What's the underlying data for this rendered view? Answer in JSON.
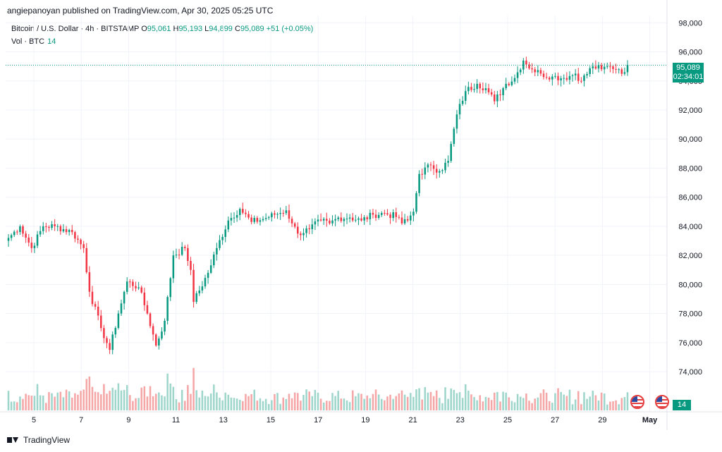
{
  "header": {
    "credit": "angiepanoyan published on TradingView.com, Apr 30, 2025 05:25 UTC"
  },
  "legend": {
    "symbol": "Bitcoin / U.S. Dollar · 4h · BITSTAMP",
    "open_label": "O",
    "open": "95,061",
    "high_label": "H",
    "high": "95,193",
    "low_label": "L",
    "low": "94,899",
    "close_label": "C",
    "close": "95,089",
    "change": "+51 (+0.05%)",
    "volume_label": "Vol · BTC",
    "volume": "14"
  },
  "price_badge": {
    "price": "95,089",
    "countdown": "02:34:01"
  },
  "volume_badge": {
    "value": "14"
  },
  "footer": {
    "brand": "TradingView"
  },
  "colors": {
    "up": "#089981",
    "down": "#f23645",
    "up_volume": "#9fd6cc",
    "down_volume": "#f5a6a6",
    "grid": "#f0f3fa",
    "axis_text": "#131722"
  },
  "icons": [
    "tradingview-logo-icon",
    "us-flag-event-icon",
    "us-flag-event-icon"
  ],
  "chart_data": {
    "type": "candlestick",
    "timeframe": "4h",
    "ylim": [
      72500,
      98500
    ],
    "y_ticks": [
      "74,000",
      "76,000",
      "78,000",
      "80,000",
      "82,000",
      "84,000",
      "86,000",
      "88,000",
      "90,000",
      "92,000",
      "94,000",
      "96,000",
      "98,000"
    ],
    "x_ticks": [
      "5",
      "7",
      "9",
      "11",
      "13",
      "15",
      "17",
      "19",
      "21",
      "23",
      "25",
      "27",
      "29",
      "May"
    ],
    "last_price": 95089,
    "anchors": [
      [
        0,
        83200
      ],
      [
        4,
        84000
      ],
      [
        8,
        82500
      ],
      [
        12,
        84000
      ],
      [
        16,
        84000
      ],
      [
        22,
        83600
      ],
      [
        26,
        82500
      ],
      [
        28,
        79500
      ],
      [
        32,
        77000
      ],
      [
        35,
        75500
      ],
      [
        38,
        78000
      ],
      [
        41,
        80200
      ],
      [
        45,
        79800
      ],
      [
        48,
        78000
      ],
      [
        51,
        75800
      ],
      [
        54,
        77500
      ],
      [
        57,
        82000
      ],
      [
        61,
        82500
      ],
      [
        63,
        81000
      ],
      [
        64,
        78800
      ],
      [
        69,
        80800
      ],
      [
        72,
        82500
      ],
      [
        76,
        84400
      ],
      [
        80,
        85200
      ],
      [
        84,
        84300
      ],
      [
        88,
        84500
      ],
      [
        92,
        84800
      ],
      [
        96,
        85100
      ],
      [
        98,
        84200
      ],
      [
        100,
        83500
      ],
      [
        104,
        83800
      ],
      [
        108,
        84400
      ],
      [
        111,
        84200
      ],
      [
        114,
        84600
      ],
      [
        118,
        84600
      ],
      [
        122,
        84400
      ],
      [
        126,
        84800
      ],
      [
        130,
        84900
      ],
      [
        135,
        84600
      ],
      [
        136,
        84200
      ],
      [
        138,
        84400
      ],
      [
        140,
        85000
      ],
      [
        142,
        87600
      ],
      [
        146,
        88200
      ],
      [
        149,
        87800
      ],
      [
        152,
        88500
      ],
      [
        155,
        91700
      ],
      [
        158,
        93300
      ],
      [
        162,
        93800
      ],
      [
        165,
        93500
      ],
      [
        168,
        92600
      ],
      [
        172,
        93800
      ],
      [
        175,
        94200
      ],
      [
        178,
        95400
      ],
      [
        181,
        94800
      ],
      [
        184,
        94500
      ],
      [
        188,
        94300
      ],
      [
        192,
        94200
      ],
      [
        196,
        94500
      ],
      [
        198,
        94000
      ],
      [
        202,
        95000
      ],
      [
        205,
        94800
      ],
      [
        208,
        95000
      ],
      [
        211,
        94800
      ],
      [
        213,
        94600
      ],
      [
        214,
        95089
      ]
    ],
    "volume_ylim": [
      0,
      60
    ]
  }
}
